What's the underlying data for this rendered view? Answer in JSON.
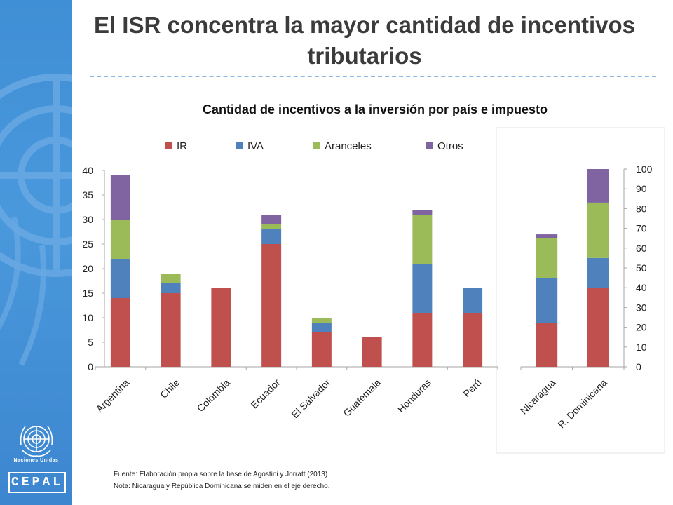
{
  "slide": {
    "title": "El ISR concentra la mayor cantidad de incentivos tributarios",
    "org_line": "Naciones Unidas",
    "org_logo": "CEPAL",
    "footnote_source": "Fuente: Elaboración propia sobre la base de Agostini y Jorratt (2013)",
    "footnote_note": "Nota: Nicaragua y República Dominicana se miden en el eje derecho."
  },
  "chart_data": [
    {
      "type": "bar",
      "stacked": true,
      "title": "Cantidad de incentivos a la inversión por país e impuesto",
      "categories": [
        "Argentina",
        "Chile",
        "Colombia",
        "Ecuador",
        "El Salvador",
        "Guatemala",
        "Honduras",
        "Perú"
      ],
      "series": [
        {
          "name": "IR",
          "color": "#c0504d",
          "values": [
            14,
            15,
            16,
            25,
            7,
            6,
            11,
            11
          ]
        },
        {
          "name": "IVA",
          "color": "#4f81bd",
          "values": [
            8,
            2,
            0,
            3,
            2,
            0,
            10,
            5
          ]
        },
        {
          "name": "Aranceles",
          "color": "#9bbb59",
          "values": [
            8,
            2,
            0,
            1,
            1,
            0,
            10,
            0
          ]
        },
        {
          "name": "Otros",
          "color": "#8064a2",
          "values": [
            9,
            0,
            0,
            2,
            0,
            0,
            1,
            0
          ]
        }
      ],
      "yticks": [
        "0",
        "5",
        "10",
        "15",
        "20",
        "25",
        "30",
        "35",
        "40"
      ],
      "ylim": [
        0,
        40
      ],
      "legend": "top"
    },
    {
      "type": "bar",
      "stacked": true,
      "axis": "right",
      "categories": [
        "Nicaragua",
        "R. Dominicana"
      ],
      "series": [
        {
          "name": "IR",
          "color": "#c0504d",
          "values": [
            22,
            40
          ]
        },
        {
          "name": "IVA",
          "color": "#4f81bd",
          "values": [
            23,
            15
          ]
        },
        {
          "name": "Aranceles",
          "color": "#9bbb59",
          "values": [
            20,
            28
          ]
        },
        {
          "name": "Otros",
          "color": "#8064a2",
          "values": [
            2,
            17
          ]
        }
      ],
      "yticks": [
        "0",
        "10",
        "20",
        "30",
        "40",
        "50",
        "60",
        "70",
        "80",
        "90",
        "100"
      ],
      "ylim": [
        0,
        100
      ]
    }
  ]
}
